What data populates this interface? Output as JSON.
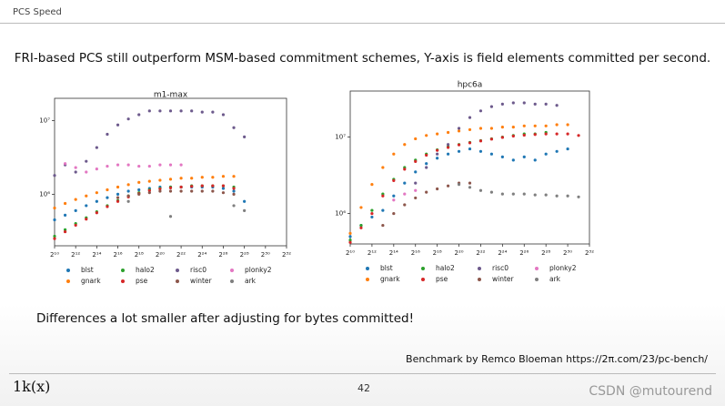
{
  "header": {
    "title": "PCS Speed"
  },
  "headline": "FRI-based PCS still outperform MSM-based commitment schemes, Y-axis is field elements committed per second.",
  "chart_data": [
    {
      "type": "scatter",
      "title": "m1-max",
      "xscale": "log",
      "yscale": "log",
      "legend": "below",
      "x": [
        1024,
        2048,
        4096,
        8192,
        16384,
        32768,
        65536,
        131072,
        262144,
        524288,
        1048576,
        2097152,
        4194304,
        8388608,
        16777216,
        33554432,
        67108864,
        134217728,
        268435456
      ],
      "xlim": [
        1024,
        4294967296
      ],
      "xticks": [
        {
          "value": 1024,
          "label": "2¹⁰"
        },
        {
          "value": 4096,
          "label": "2¹²"
        },
        {
          "value": 16384,
          "label": "2¹⁴"
        },
        {
          "value": 65536,
          "label": "2¹⁶"
        },
        {
          "value": 262144,
          "label": "2¹⁸"
        },
        {
          "value": 1048576,
          "label": "2²⁰"
        },
        {
          "value": 4194304,
          "label": "2²²"
        },
        {
          "value": 16777216,
          "label": "2²⁴"
        },
        {
          "value": 67108864,
          "label": "2²⁶"
        },
        {
          "value": 268435456,
          "label": "2²⁸"
        },
        {
          "value": 1073741824,
          "label": "2³⁰"
        },
        {
          "value": 4294967296,
          "label": "2³²"
        }
      ],
      "ylim": [
        200000,
        20000000
      ],
      "yticks": [
        {
          "value": 1000000,
          "label": "10⁶"
        },
        {
          "value": 10000000,
          "label": "10⁷"
        }
      ],
      "series": [
        {
          "name": "blst",
          "color": "#1f77b4",
          "values": [
            450000,
            520000,
            600000,
            700000,
            800000,
            900000,
            1000000,
            1100000,
            1150000,
            1200000,
            1250000,
            1250000,
            1250000,
            1250000,
            1250000,
            1250000,
            1200000,
            1100000,
            800000
          ]
        },
        {
          "name": "gnark",
          "color": "#ff7f0e",
          "values": [
            650000,
            750000,
            850000,
            950000,
            1050000,
            1150000,
            1250000,
            1350000,
            1450000,
            1500000,
            1550000,
            1600000,
            1650000,
            1650000,
            1700000,
            1700000,
            1750000,
            1750000,
            null
          ]
        },
        {
          "name": "halo2",
          "color": "#2ca02c",
          "values": [
            270000,
            330000,
            400000,
            480000,
            580000,
            700000,
            820000,
            950000,
            1050000,
            1150000,
            1200000,
            1250000,
            1250000,
            1300000,
            1300000,
            1300000,
            1300000,
            1250000,
            null
          ]
        },
        {
          "name": "pse",
          "color": "#d62728",
          "values": [
            250000,
            310000,
            380000,
            460000,
            560000,
            680000,
            800000,
            920000,
            1020000,
            1120000,
            1180000,
            1220000,
            1250000,
            1280000,
            1300000,
            1300000,
            1300000,
            1200000,
            null
          ]
        },
        {
          "name": "risc0",
          "color": "#6d5a8c",
          "values": [
            1800000,
            2500000,
            2000000,
            2800000,
            4300000,
            6500000,
            8700000,
            10500000,
            12000000,
            13500000,
            13500000,
            13500000,
            13500000,
            13500000,
            13000000,
            13000000,
            12000000,
            8000000,
            6000000
          ]
        },
        {
          "name": "winter",
          "color": "#8c564b",
          "values": [
            null,
            null,
            null,
            null,
            null,
            null,
            900000,
            950000,
            1000000,
            1050000,
            1100000,
            1100000,
            1100000,
            1100000,
            1100000,
            1100000,
            1050000,
            1000000,
            null
          ]
        },
        {
          "name": "plonky2",
          "color": "#e377c2",
          "values": [
            null,
            2600000,
            2300000,
            2000000,
            2200000,
            2400000,
            2500000,
            2500000,
            2400000,
            2400000,
            2500000,
            2500000,
            2500000,
            null,
            null,
            null,
            null,
            null,
            null
          ]
        },
        {
          "name": "ark",
          "color": "#7f7f7f",
          "values": [
            null,
            null,
            null,
            null,
            null,
            null,
            null,
            800000,
            null,
            null,
            null,
            500000,
            null,
            null,
            null,
            null,
            null,
            700000,
            600000
          ]
        }
      ]
    },
    {
      "type": "scatter",
      "title": "hpc6a",
      "xscale": "log",
      "yscale": "log",
      "legend": "below",
      "x": [
        1024,
        2048,
        4096,
        8192,
        16384,
        32768,
        65536,
        131072,
        262144,
        524288,
        1048576,
        2097152,
        4194304,
        8388608,
        16777216,
        33554432,
        67108864,
        134217728,
        268435456,
        536870912,
        1073741824,
        2147483648
      ],
      "xlim": [
        1024,
        4294967296
      ],
      "xticks": [
        {
          "value": 1024,
          "label": "2¹⁰"
        },
        {
          "value": 4096,
          "label": "2¹²"
        },
        {
          "value": 16384,
          "label": "2¹⁴"
        },
        {
          "value": 65536,
          "label": "2¹⁶"
        },
        {
          "value": 262144,
          "label": "2¹⁸"
        },
        {
          "value": 1048576,
          "label": "2²⁰"
        },
        {
          "value": 4194304,
          "label": "2²²"
        },
        {
          "value": 16777216,
          "label": "2²⁴"
        },
        {
          "value": 67108864,
          "label": "2²⁶"
        },
        {
          "value": 268435456,
          "label": "2²⁸"
        },
        {
          "value": 1073741824,
          "label": "2³⁰"
        },
        {
          "value": 4294967296,
          "label": "2³²"
        }
      ],
      "ylim": [
        400000,
        40000000
      ],
      "yticks": [
        {
          "value": 1000000,
          "label": "10⁶"
        },
        {
          "value": 10000000,
          "label": "10⁷"
        }
      ],
      "series": [
        {
          "name": "blst",
          "color": "#1f77b4",
          "values": [
            500000,
            700000,
            900000,
            1100000,
            1700000,
            2500000,
            3500000,
            4500000,
            5300000,
            6000000,
            6500000,
            7000000,
            6500000,
            6000000,
            5500000,
            5000000,
            5500000,
            5000000,
            6000000,
            6500000,
            7000000,
            null
          ]
        },
        {
          "name": "gnark",
          "color": "#ff7f0e",
          "values": [
            550000,
            1200000,
            2400000,
            4000000,
            6000000,
            8000000,
            9500000,
            10500000,
            11000000,
            11500000,
            12000000,
            12500000,
            13000000,
            13000000,
            13500000,
            13500000,
            14000000,
            14000000,
            14000000,
            14500000,
            14500000,
            null
          ]
        },
        {
          "name": "halo2",
          "color": "#2ca02c",
          "values": [
            450000,
            700000,
            1100000,
            1800000,
            2800000,
            4000000,
            5000000,
            6000000,
            6800000,
            7500000,
            8000000,
            8500000,
            9000000,
            9500000,
            10000000,
            10500000,
            11000000,
            11000000,
            11500000,
            null,
            null,
            null
          ]
        },
        {
          "name": "pse",
          "color": "#d62728",
          "values": [
            420000,
            650000,
            1000000,
            1700000,
            2700000,
            3800000,
            4800000,
            5800000,
            6700000,
            7300000,
            7900000,
            8400000,
            8900000,
            9400000,
            9900000,
            10300000,
            10600000,
            10800000,
            11000000,
            11000000,
            11000000,
            10500000
          ]
        },
        {
          "name": "risc0",
          "color": "#6d5a8c",
          "values": [
            null,
            null,
            null,
            null,
            null,
            null,
            2500000,
            4000000,
            6000000,
            8000000,
            13000000,
            18000000,
            22000000,
            25000000,
            27000000,
            28000000,
            28000000,
            27000000,
            27000000,
            26000000,
            null,
            null
          ]
        },
        {
          "name": "winter",
          "color": "#8c564b",
          "values": [
            null,
            null,
            null,
            700000,
            1000000,
            1300000,
            1600000,
            1900000,
            2100000,
            2300000,
            2500000,
            2500000,
            null,
            null,
            null,
            null,
            null,
            null,
            null,
            null,
            null,
            null
          ]
        },
        {
          "name": "plonky2",
          "color": "#e377c2",
          "values": [
            null,
            null,
            null,
            null,
            1500000,
            1800000,
            2000000,
            null,
            null,
            null,
            null,
            null,
            null,
            null,
            null,
            null,
            null,
            null,
            null,
            null,
            null,
            null
          ]
        },
        {
          "name": "ark",
          "color": "#7f7f7f",
          "values": [
            null,
            null,
            null,
            null,
            null,
            null,
            null,
            null,
            null,
            null,
            2400000,
            2200000,
            2000000,
            1900000,
            1800000,
            1800000,
            1800000,
            1750000,
            1750000,
            1700000,
            1700000,
            1650000
          ]
        }
      ]
    }
  ],
  "note": "Differences a lot smaller after adjusting for bytes committed!",
  "credit": "Benchmark by Remco Bloeman https://2π.com/23/pc-bench/",
  "footer": {
    "logo": "1k(x)",
    "page": "42"
  },
  "watermark": "CSDN @mutourend"
}
